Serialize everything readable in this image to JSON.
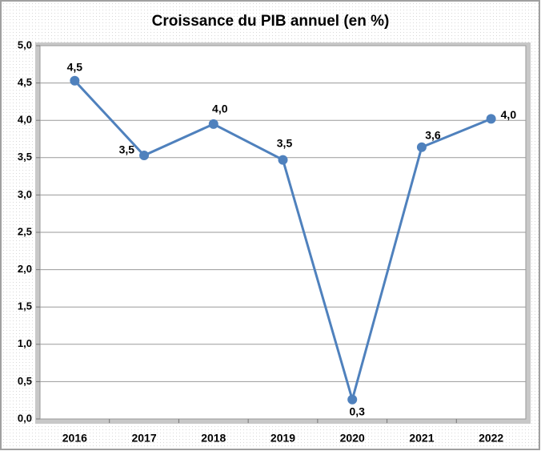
{
  "chart_data": {
    "type": "line",
    "title": "Croissance du PIB annuel (en %)",
    "categories": [
      "2016",
      "2017",
      "2018",
      "2019",
      "2020",
      "2021",
      "2022"
    ],
    "series": [
      {
        "name": "Croissance du PIB",
        "color": "#4f81bd",
        "values": [
          4.53,
          3.53,
          3.95,
          3.47,
          0.26,
          3.64,
          4.02
        ],
        "value_labels": [
          "4,5",
          "3,5",
          "4,0",
          "3,5",
          "0,3",
          "3,6",
          "4,0"
        ]
      }
    ],
    "ylim": [
      0,
      5
    ],
    "yticks": [
      {
        "value": 0,
        "label": "0,0"
      },
      {
        "value": 0.5,
        "label": "0,5"
      },
      {
        "value": 1,
        "label": "1,0"
      },
      {
        "value": 1.5,
        "label": "1,5"
      },
      {
        "value": 2,
        "label": "2,0"
      },
      {
        "value": 2.5,
        "label": "2,5"
      },
      {
        "value": 3,
        "label": "3,0"
      },
      {
        "value": 3.5,
        "label": "3,5"
      },
      {
        "value": 4,
        "label": "4,0"
      },
      {
        "value": 4.5,
        "label": "4,5"
      },
      {
        "value": 5,
        "label": "5,0"
      }
    ],
    "grid": true
  }
}
